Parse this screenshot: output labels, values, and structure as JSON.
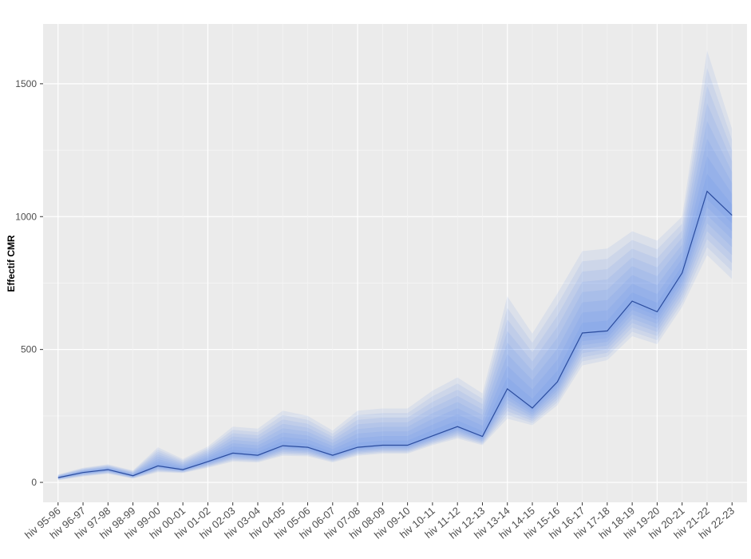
{
  "chart_data": {
    "type": "area",
    "xlabel": "",
    "ylabel": "Effectif CMR",
    "ylim": [
      -75,
      1725
    ],
    "yticks": [
      0,
      500,
      1000,
      1500
    ],
    "grid": true,
    "categories": [
      "hiv 95-96",
      "hiv 96-97",
      "hiv 97-98",
      "hiv 98-99",
      "hiv 99-00",
      "hiv 00-01",
      "hiv 01-02",
      "hiv 02-03",
      "hiv 03-04",
      "hiv 04-05",
      "hiv 05-06",
      "hiv 06-07",
      "hiv 07-08",
      "hiv 08-09",
      "hiv 09-10",
      "hiv 10-11",
      "hiv 11-12",
      "hiv 12-13",
      "hiv 13-14",
      "hiv 14-15",
      "hiv 15-16",
      "hiv 16-17",
      "hiv 17-18",
      "hiv 18-19",
      "hiv 19-20",
      "hiv 20-21",
      "hiv 21-22",
      "hiv 22-23"
    ],
    "series": [
      {
        "values": [
          18,
          37,
          48,
          25,
          62,
          48,
          78,
          110,
          102,
          138,
          132,
          102,
          132,
          140,
          140,
          175,
          210,
          173,
          352,
          280,
          378,
          562,
          570,
          682,
          642,
          788,
          1095,
          1005
        ]
      }
    ],
    "interval_outer": {
      "lower": [
        8,
        22,
        32,
        14,
        38,
        35,
        55,
        78,
        75,
        100,
        98,
        75,
        100,
        108,
        108,
        140,
        165,
        140,
        240,
        215,
        290,
        440,
        460,
        550,
        520,
        660,
        855,
        765
      ],
      "upper": [
        30,
        55,
        68,
        45,
        132,
        88,
        135,
        210,
        202,
        270,
        250,
        195,
        270,
        278,
        278,
        345,
        395,
        335,
        700,
        560,
        710,
        870,
        880,
        945,
        910,
        1000,
        1625,
        1330
      ]
    },
    "band_count": 8,
    "colors": {
      "line": "#2b4c9e",
      "band": "#3f7fe6",
      "panel": "#ebebeb",
      "grid_major": "#ffffff",
      "grid_minor": "#f4f4f4"
    }
  }
}
